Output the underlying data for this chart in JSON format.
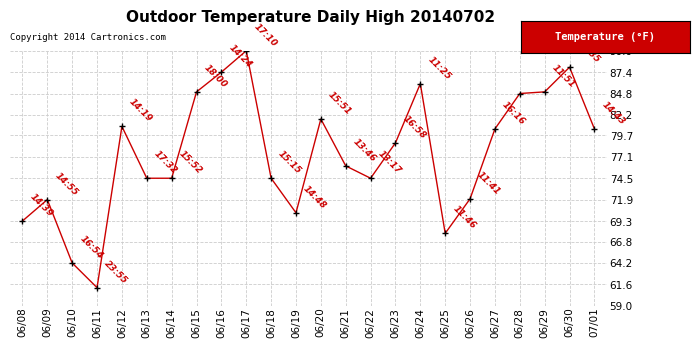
{
  "title": "Outdoor Temperature Daily High 20140702",
  "copyright": "Copyright 2014 Cartronics.com",
  "legend_label": "Temperature (°F)",
  "legend_bg": "#cc0000",
  "legend_fg": "#ffffff",
  "ylim": [
    59.0,
    90.0
  ],
  "yticks": [
    59.0,
    61.6,
    64.2,
    66.8,
    69.3,
    71.9,
    74.5,
    77.1,
    79.7,
    82.2,
    84.8,
    87.4,
    90.0
  ],
  "dates": [
    "06/08",
    "06/09",
    "06/10",
    "06/11",
    "06/12",
    "06/13",
    "06/14",
    "06/15",
    "06/16",
    "06/17",
    "06/18",
    "06/19",
    "06/20",
    "06/21",
    "06/22",
    "06/23",
    "06/24",
    "06/25",
    "06/26",
    "06/27",
    "06/28",
    "06/29",
    "06/30",
    "07/01"
  ],
  "values": [
    69.3,
    71.9,
    64.2,
    61.2,
    80.8,
    74.5,
    74.5,
    85.0,
    87.4,
    90.0,
    74.5,
    70.3,
    81.7,
    76.0,
    74.5,
    78.8,
    86.0,
    67.8,
    72.0,
    80.5,
    84.8,
    85.0,
    88.0,
    80.5
  ],
  "labels": [
    "14:39",
    "14:55",
    "16:54",
    "23:55",
    "14:19",
    "17:32",
    "15:52",
    "18:00",
    "14:24",
    "17:10",
    "15:15",
    "14:48",
    "15:51",
    "13:46",
    "13:17",
    "16:58",
    "11:25",
    "11:46",
    "11:41",
    "16:16",
    "",
    "11:51",
    "17:35",
    "14:43"
  ],
  "line_color": "#cc0000",
  "marker_color": "#000000",
  "label_color": "#cc0000",
  "bg_color": "#ffffff",
  "grid_color": "#cccccc",
  "title_fontsize": 11,
  "label_fontsize": 6.5,
  "tick_fontsize": 7.5,
  "copyright_fontsize": 6.5
}
